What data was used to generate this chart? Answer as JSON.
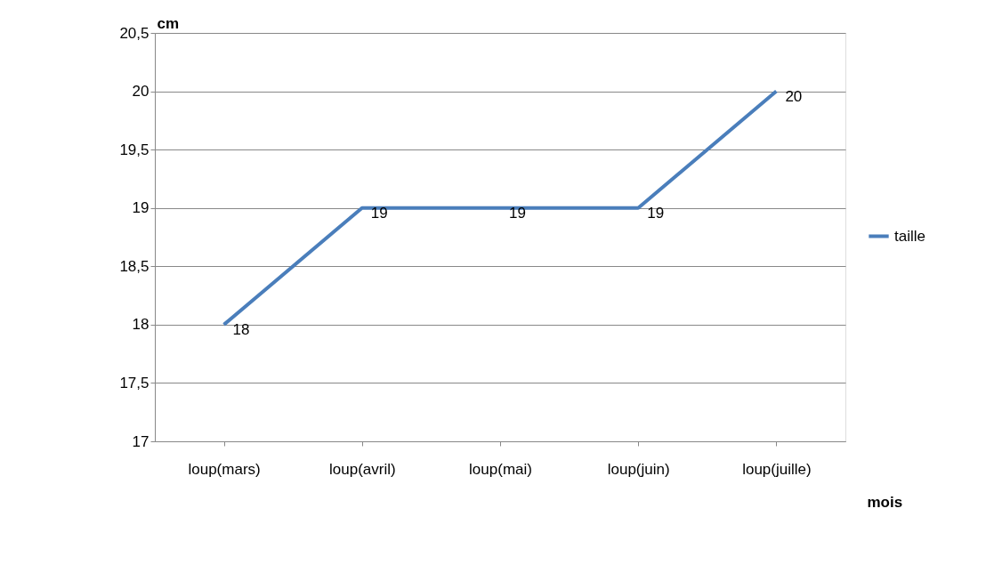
{
  "chart_data": {
    "type": "line",
    "ylabel": "cm",
    "xlabel": "mois",
    "categories": [
      "loup(mars)",
      "loup(avril)",
      "loup(mai)",
      "loup(juin)",
      "loup(juille)"
    ],
    "series": [
      {
        "name": "taille",
        "color": "#4a7ebb",
        "values": [
          18,
          19,
          19,
          19,
          20
        ]
      }
    ],
    "ylim": [
      17,
      20.5
    ],
    "yticks": [
      17,
      {
        "value": 17.5,
        "label": "17,5"
      },
      18,
      {
        "value": 18.5,
        "label": "18,5"
      },
      19,
      {
        "value": 19.5,
        "label": "19,5"
      },
      20,
      {
        "value": 20.5,
        "label": "20,5"
      }
    ],
    "grid": "y",
    "legend": "right",
    "data_labels": true,
    "marker": "none",
    "line_style": "solid"
  }
}
